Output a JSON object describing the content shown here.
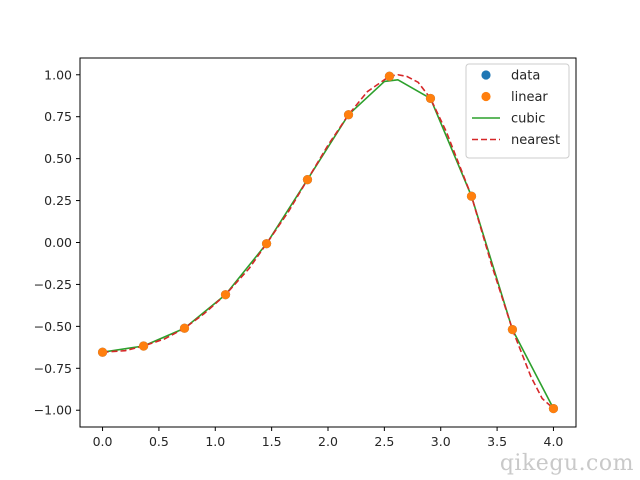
{
  "chart_data": {
    "type": "line",
    "title": "",
    "xlabel": "",
    "ylabel": "",
    "xlim": [
      -0.2,
      4.2
    ],
    "ylim": [
      -1.1,
      1.1
    ],
    "xticks": [
      0.0,
      0.5,
      1.0,
      1.5,
      2.0,
      2.5,
      3.0,
      3.5,
      4.0
    ],
    "yticks": [
      -1.0,
      -0.75,
      -0.5,
      -0.25,
      0.0,
      0.25,
      0.5,
      0.75,
      1.0
    ],
    "xtick_labels": [
      "0.0",
      "0.5",
      "1.0",
      "1.5",
      "2.0",
      "2.5",
      "3.0",
      "3.5",
      "4.0"
    ],
    "ytick_labels": [
      "−1.00",
      "−0.75",
      "−0.50",
      "−0.25",
      "0.00",
      "0.25",
      "0.50",
      "0.75",
      "1.00"
    ],
    "grid": false,
    "legend_position": "top-right",
    "series": [
      {
        "name": "data",
        "style": "markers",
        "color": "#1f77b4",
        "x": [
          0.0,
          0.364,
          0.727,
          1.091,
          1.455,
          1.818,
          2.182,
          2.545,
          2.909,
          3.273,
          3.636,
          4.0
        ],
        "y": [
          -0.654,
          -0.617,
          -0.511,
          -0.311,
          -0.007,
          0.375,
          0.762,
          0.991,
          0.859,
          0.276,
          -0.519,
          -0.99
        ]
      },
      {
        "name": "linear",
        "style": "markers",
        "color": "#ff7f0e",
        "x": [
          0.0,
          0.364,
          0.727,
          1.091,
          1.455,
          1.818,
          2.182,
          2.545,
          2.909,
          3.273,
          3.636,
          4.0
        ],
        "y": [
          -0.654,
          -0.617,
          -0.511,
          -0.311,
          -0.007,
          0.375,
          0.762,
          0.991,
          0.859,
          0.276,
          -0.519,
          -0.99
        ]
      },
      {
        "name": "cubic",
        "style": "solid",
        "color": "#2ca02c",
        "x": [
          0.0,
          0.364,
          0.727,
          1.091,
          1.455,
          1.818,
          2.182,
          2.5,
          2.62,
          2.909,
          3.273,
          3.636,
          4.0
        ],
        "y": [
          -0.654,
          -0.617,
          -0.511,
          -0.311,
          -0.007,
          0.375,
          0.762,
          0.96,
          0.97,
          0.859,
          0.276,
          -0.519,
          -0.99
        ]
      },
      {
        "name": "nearest",
        "style": "dashed",
        "color": "#d62728",
        "x": [
          0.0,
          0.2,
          0.364,
          0.55,
          0.727,
          0.9,
          1.091,
          1.3,
          1.455,
          1.65,
          1.818,
          2.0,
          2.182,
          2.35,
          2.545,
          2.62,
          2.7,
          2.8,
          2.909,
          3.05,
          3.273,
          3.45,
          3.636,
          3.8,
          3.9,
          4.0
        ],
        "y": [
          -0.654,
          -0.645,
          -0.617,
          -0.575,
          -0.511,
          -0.425,
          -0.311,
          -0.155,
          -0.007,
          0.185,
          0.375,
          0.58,
          0.762,
          0.9,
          0.991,
          1.0,
          0.99,
          0.955,
          0.859,
          0.66,
          0.276,
          -0.13,
          -0.519,
          -0.8,
          -0.93,
          -0.99
        ]
      }
    ]
  },
  "watermark": "qikegu.com"
}
